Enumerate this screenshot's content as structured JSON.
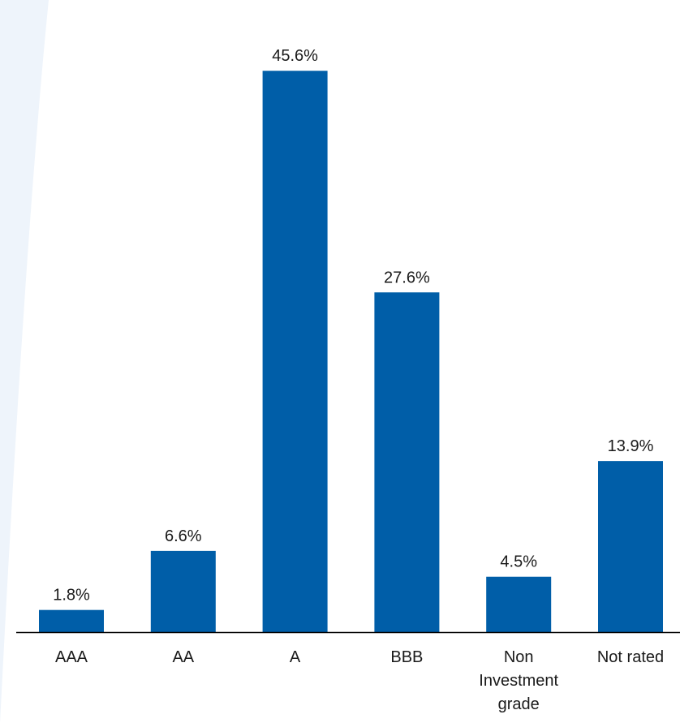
{
  "chart_data": {
    "type": "bar",
    "categories": [
      "AAA",
      "AA",
      "A",
      "BBB",
      "Non Investment grade",
      "Not rated"
    ],
    "category_lines": [
      [
        "AAA"
      ],
      [
        "AA"
      ],
      [
        "A"
      ],
      [
        "BBB"
      ],
      [
        "Non",
        "Investment",
        "grade"
      ],
      [
        "Not rated"
      ]
    ],
    "values": [
      1.8,
      6.6,
      45.6,
      27.6,
      4.5,
      13.9
    ],
    "data_labels": [
      "1.8%",
      "6.6%",
      "45.6%",
      "27.6%",
      "4.5%",
      "13.9%"
    ],
    "title": "",
    "xlabel": "",
    "ylabel": "",
    "grid": false,
    "legend": "none",
    "colors": {
      "bar": "#005ea8",
      "axis": "#000000",
      "text": "#1a1a1a",
      "background_tint": "#eef4fb"
    }
  }
}
